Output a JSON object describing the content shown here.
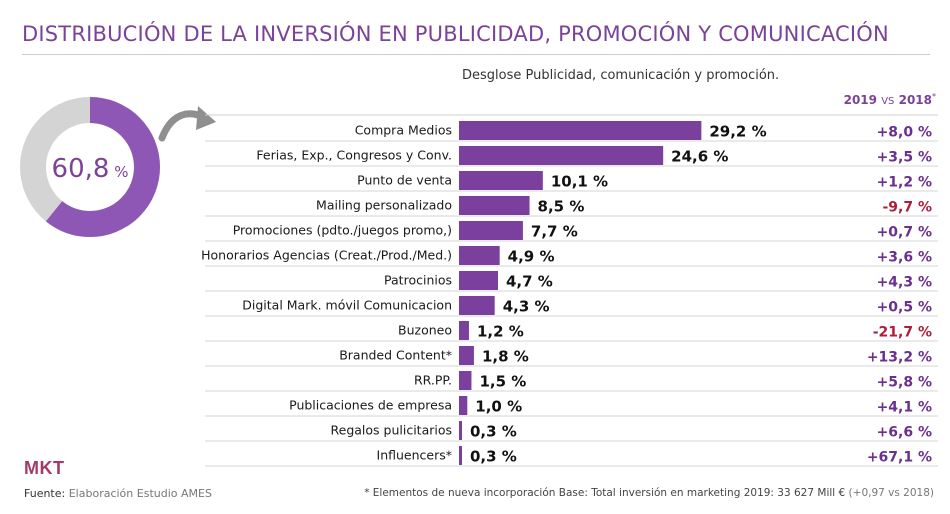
{
  "header": {
    "title": "DISTRIBUCIÓN DE LA INVERSIÓN EN PUBLICIDAD, PROMOCIÓN Y COMUNICACIÓN",
    "subtitle": "Desglose Publicidad, comunicación y promoción.",
    "comparison_year_a": "2019",
    "comparison_vs": "VS",
    "comparison_year_b": "2018",
    "comparison_mark": "*"
  },
  "donut": {
    "value": 60.8,
    "value_text": "60,8",
    "unit": "%"
  },
  "chart_data": {
    "type": "bar",
    "orientation": "horizontal",
    "title": "DISTRIBUCIÓN DE LA INVERSIÓN EN PUBLICIDAD, PROMOCIÓN Y COMUNICACIÓN",
    "subtitle": "Desglose Publicidad, comunicación y promoción.",
    "categories": [
      "Compra Medios",
      "Ferias, Exp., Congresos y Conv.",
      "Punto de venta",
      "Mailing personalizado",
      "Promociones (pdto./juegos promo,)",
      "Honorarios Agencias (Creat./Prod./Med.)",
      "Patrocinios",
      "Digital Mark. móvil  Comunicacion",
      "Buzoneo",
      "Branded Content*",
      "RR.PP.",
      "Publicaciones de empresa",
      "Regalos pulicitarios",
      "Influencers*"
    ],
    "values": [
      29.2,
      24.6,
      10.1,
      8.5,
      7.7,
      4.9,
      4.7,
      4.3,
      1.2,
      1.8,
      1.5,
      1.0,
      0.3,
      0.3
    ],
    "value_labels": [
      "29,2 %",
      "24,6 %",
      "10,1 %",
      "8,5 %",
      "7,7 %",
      "4,9 %",
      "4,7 %",
      "4,3 %",
      "1,2 %",
      "1,8 %",
      "1,5 %",
      "1,0 %",
      "0,3 %",
      "0,3 %"
    ],
    "changes": [
      8.0,
      3.5,
      1.2,
      -9.7,
      0.7,
      3.6,
      4.3,
      0.5,
      -21.7,
      13.2,
      5.8,
      4.1,
      6.6,
      67.1
    ],
    "change_labels": [
      "+8,0 %",
      "+3,5 %",
      "+1,2 %",
      "-9,7 %",
      "+0,7 %",
      "+3,6 %",
      "+4,3 %",
      "+0,5 %",
      "-21,7 %",
      "+13,2 %",
      "+5,8 %",
      "+4,1 %",
      "+6,6 %",
      "+67,1 %"
    ],
    "xlim": [
      0,
      30
    ],
    "grid": false,
    "colors": {
      "bar": "#7b3f9e",
      "positive": "#6b2f8f",
      "negative": "#b01c3c",
      "donut_fill": "#8e57b5",
      "donut_rest": "#d4d4d4"
    }
  },
  "footer": {
    "brand": "MKT",
    "source_label": "Fuente:",
    "source_value": "Elaboración Estudio AMES",
    "footnote_mark": "*",
    "footnote_text": " Elementos de nueva incorporación  Base: Total inversión en marketing 2019: 33 627 Mill € ",
    "footnote_extra": "(+0,97 vs 2018)"
  }
}
